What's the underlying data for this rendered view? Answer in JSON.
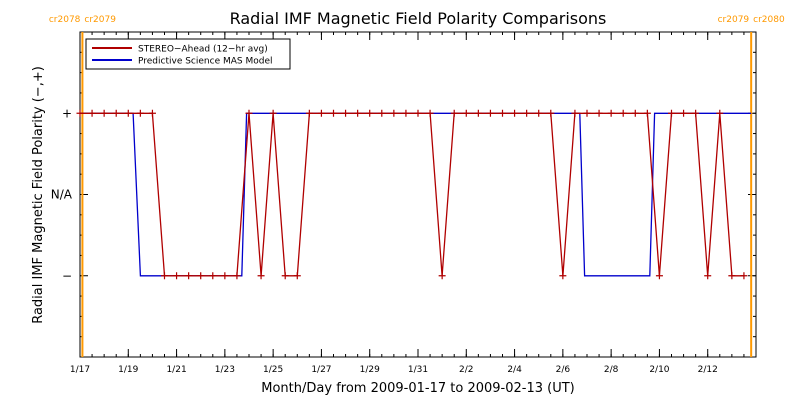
{
  "colors": {
    "stereo": "#b00000",
    "mas": "#0000cc",
    "rotation_marker": "#ff9900",
    "axis": "#000000"
  },
  "chart_data": {
    "type": "line",
    "title": "Radial IMF Magnetic Field Polarity Comparisons",
    "xlabel": "Month/Day from 2009-01-17 to 2009-02-13 (UT)",
    "ylabel": "Radial IMF Magnetic Field Polarity (−,+)",
    "x_unit": "days since 2009-01-17 00:00 UT",
    "xlim": [
      0,
      28
    ],
    "ylim": [
      -2,
      2
    ],
    "y_ticks": [
      {
        "value": 1,
        "label": "+"
      },
      {
        "value": 0,
        "label": "N/A"
      },
      {
        "value": -1,
        "label": "−"
      }
    ],
    "x_ticks": [
      {
        "value": 0,
        "label": "1/17"
      },
      {
        "value": 2,
        "label": "1/19"
      },
      {
        "value": 4,
        "label": "1/21"
      },
      {
        "value": 6,
        "label": "1/23"
      },
      {
        "value": 8,
        "label": "1/25"
      },
      {
        "value": 10,
        "label": "1/27"
      },
      {
        "value": 12,
        "label": "1/29"
      },
      {
        "value": 14,
        "label": "1/31"
      },
      {
        "value": 16,
        "label": "2/2"
      },
      {
        "value": 18,
        "label": "2/4"
      },
      {
        "value": 20,
        "label": "2/6"
      },
      {
        "value": 22,
        "label": "2/8"
      },
      {
        "value": 24,
        "label": "2/10"
      },
      {
        "value": 26,
        "label": "2/12"
      }
    ],
    "x_minor_step": 0.5,
    "rotation_markers": [
      {
        "x": 0.1,
        "left_label": "cr2078",
        "right_label": "cr2079"
      },
      {
        "x": 27.8,
        "left_label": "cr2079",
        "right_label": "cr2080"
      }
    ],
    "legend": {
      "position": "top-left"
    },
    "series": [
      {
        "name": "STEREO−Ahead (12−hr avg)",
        "color_key": "stereo",
        "marker": "plus",
        "points": [
          [
            0,
            1
          ],
          [
            0.5,
            1
          ],
          [
            1,
            1
          ],
          [
            1.5,
            1
          ],
          [
            2,
            1
          ],
          [
            2.5,
            1
          ],
          [
            3,
            1
          ],
          [
            3.5,
            -1
          ],
          [
            4,
            -1
          ],
          [
            4.5,
            -1
          ],
          [
            5,
            -1
          ],
          [
            5.5,
            -1
          ],
          [
            6,
            -1
          ],
          [
            6.5,
            -1
          ],
          [
            7,
            1
          ],
          [
            7.5,
            -1
          ],
          [
            8,
            1
          ],
          [
            8.5,
            -1
          ],
          [
            9,
            -1
          ],
          [
            9.5,
            1
          ],
          [
            10,
            1
          ],
          [
            10.5,
            1
          ],
          [
            11,
            1
          ],
          [
            11.5,
            1
          ],
          [
            12,
            1
          ],
          [
            12.5,
            1
          ],
          [
            13,
            1
          ],
          [
            13.5,
            1
          ],
          [
            14,
            1
          ],
          [
            14.5,
            1
          ],
          [
            15,
            -1
          ],
          [
            15.5,
            1
          ],
          [
            16,
            1
          ],
          [
            16.5,
            1
          ],
          [
            17,
            1
          ],
          [
            17.5,
            1
          ],
          [
            18,
            1
          ],
          [
            18.5,
            1
          ],
          [
            19,
            1
          ],
          [
            19.5,
            1
          ],
          [
            20,
            -1
          ],
          [
            20.5,
            1
          ],
          [
            21,
            1
          ],
          [
            21.5,
            1
          ],
          [
            22,
            1
          ],
          [
            22.5,
            1
          ],
          [
            23,
            1
          ],
          [
            23.5,
            1
          ],
          [
            24,
            -1
          ],
          [
            24.5,
            1
          ],
          [
            25,
            1
          ],
          [
            25.5,
            1
          ],
          [
            26,
            -1
          ],
          [
            26.5,
            1
          ],
          [
            27,
            -1
          ],
          [
            27.5,
            -1
          ]
        ]
      },
      {
        "name": "Predictive Science MAS Model",
        "color_key": "mas",
        "marker": "none",
        "points": [
          [
            0,
            1
          ],
          [
            2.2,
            1
          ],
          [
            2.5,
            -1
          ],
          [
            6.7,
            -1
          ],
          [
            6.9,
            1
          ],
          [
            20.7,
            1
          ],
          [
            20.9,
            -1
          ],
          [
            23.6,
            -1
          ],
          [
            23.8,
            1
          ],
          [
            27.8,
            1
          ]
        ]
      }
    ]
  }
}
